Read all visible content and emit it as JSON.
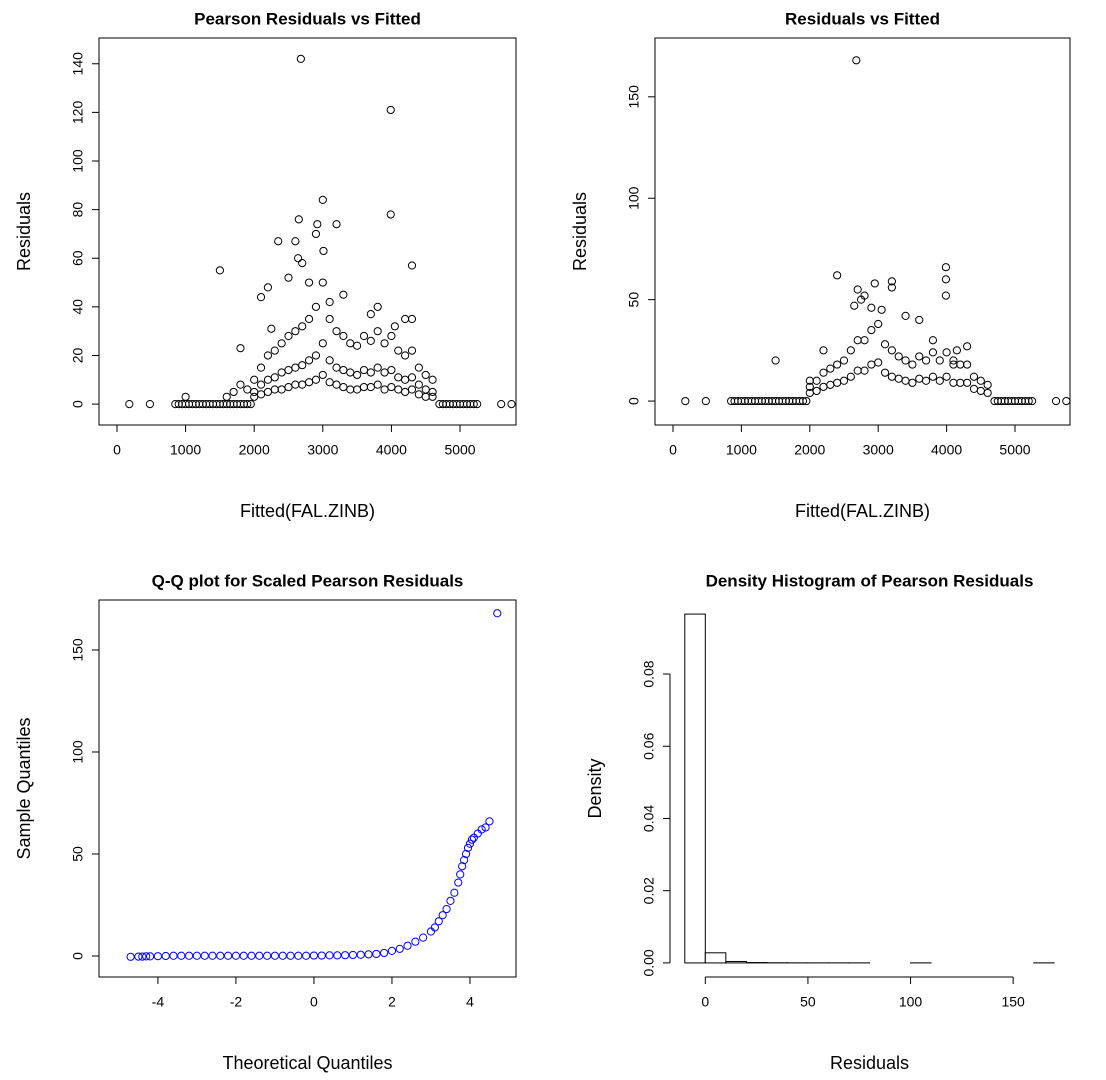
{
  "chart_data": [
    {
      "type": "scatter",
      "title": "Pearson Residuals vs Fitted",
      "xlabel": "Fitted(FAL.ZINB)",
      "ylabel": "Residuals",
      "color": "#000000",
      "x": [
        850,
        900,
        950,
        1000,
        1050,
        1100,
        1150,
        1200,
        1250,
        1300,
        1350,
        1400,
        1450,
        1500,
        1550,
        1600,
        1650,
        1700,
        1750,
        1800,
        1850,
        1900,
        1950,
        4700,
        4750,
        4800,
        4850,
        4900,
        4950,
        5000,
        5050,
        5100,
        5150,
        5200,
        5250,
        180,
        480,
        5600,
        5750,
        2000,
        2100,
        2200,
        2300,
        2400,
        2500,
        2600,
        2700,
        2800,
        2900,
        3000,
        3100,
        3200,
        3300,
        3400,
        3500,
        3600,
        3700,
        3800,
        3900,
        4000,
        4100,
        4200,
        4300,
        4400,
        4500,
        4600,
        2000,
        2100,
        2200,
        2300,
        2400,
        2500,
        2600,
        2700,
        2800,
        2900,
        3000,
        3100,
        3200,
        3300,
        3400,
        3500,
        3600,
        3700,
        3800,
        3900,
        4000,
        4100,
        4200,
        4300,
        4400,
        4500,
        4600,
        2000,
        2100,
        2200,
        2300,
        2400,
        2500,
        2600,
        2700,
        2800,
        2900,
        3000,
        3100,
        3200,
        3300,
        3400,
        3500,
        3600,
        3700,
        3800,
        3900,
        4000,
        4100,
        4200,
        4300,
        4400,
        4500,
        4600,
        1600,
        1700,
        1800,
        1900,
        2680,
        3990,
        3000,
        2920,
        3200,
        2900,
        3010,
        2650,
        2600,
        2350,
        3990,
        4300,
        1500,
        2640,
        2700,
        2200,
        2100,
        3800,
        3700,
        4200,
        4300,
        3300,
        3100,
        2500,
        2800,
        1000,
        1800,
        2250,
        4050
      ],
      "values": [
        0,
        0,
        0,
        0,
        0,
        0,
        0,
        0,
        0,
        0,
        0,
        0,
        0,
        0,
        0,
        0,
        0,
        0,
        0,
        0,
        0,
        0,
        0,
        0,
        0,
        0,
        0,
        0,
        0,
        0,
        0,
        0,
        0,
        0,
        0,
        0,
        0,
        0,
        0,
        10,
        15,
        20,
        22,
        25,
        28,
        30,
        32,
        35,
        40,
        50,
        35,
        30,
        28,
        25,
        24,
        28,
        26,
        30,
        25,
        28,
        22,
        20,
        22,
        15,
        12,
        10,
        5,
        8,
        10,
        11,
        13,
        14,
        15,
        16,
        18,
        20,
        25,
        18,
        15,
        14,
        13,
        12,
        14,
        13,
        15,
        13,
        14,
        11,
        10,
        11,
        8,
        6,
        5,
        3,
        4,
        5,
        6,
        6,
        7,
        8,
        8,
        9,
        10,
        12,
        9,
        8,
        7,
        6,
        6,
        7,
        7,
        8,
        6,
        7,
        6,
        5,
        6,
        4,
        3,
        3,
        3,
        5,
        8,
        6,
        142,
        121,
        84,
        74,
        74,
        70,
        63,
        76,
        67,
        67,
        78,
        57,
        55,
        60,
        58,
        48,
        44,
        40,
        37,
        35,
        35,
        45,
        42,
        52,
        50,
        3,
        23,
        31,
        32
      ],
      "xlim": [
        -262,
        5816
      ],
      "ylim": [
        -8.6,
        150.6
      ],
      "xticks": [
        0,
        1000,
        2000,
        3000,
        4000,
        5000
      ],
      "yticks": [
        0,
        20,
        40,
        60,
        80,
        100,
        120,
        140
      ]
    },
    {
      "type": "scatter",
      "title": "Residuals vs Fitted",
      "xlabel": "Fitted(FAL.ZINB)",
      "ylabel": "Residuals",
      "color": "#000000",
      "x": [
        850,
        900,
        950,
        1000,
        1050,
        1100,
        1150,
        1200,
        1250,
        1300,
        1350,
        1400,
        1450,
        1500,
        1550,
        1600,
        1650,
        1700,
        1750,
        1800,
        1850,
        1900,
        1950,
        4700,
        4750,
        4800,
        4850,
        4900,
        4950,
        5000,
        5050,
        5100,
        5150,
        5200,
        5250,
        2000,
        2100,
        2200,
        2300,
        2400,
        2500,
        2600,
        2700,
        2800,
        2900,
        3000,
        3100,
        3200,
        3300,
        3400,
        3500,
        3600,
        3700,
        3800,
        3900,
        4000,
        4100,
        4200,
        4300,
        4400,
        4500,
        4600,
        2000,
        2100,
        2200,
        2300,
        2400,
        2500,
        2600,
        2700,
        2800,
        2900,
        3000,
        3100,
        3200,
        3300,
        3400,
        3500,
        3600,
        3700,
        3800,
        3900,
        4000,
        4100,
        4200,
        4300,
        4400,
        4500,
        4600,
        2680,
        2400,
        3990,
        3990,
        3990,
        2950,
        3200,
        3200,
        2700,
        2750,
        2800,
        2900,
        3400,
        1500,
        3600,
        2200,
        4300,
        4100,
        2000,
        2650,
        3050,
        3800,
        4150,
        180,
        480,
        5600,
        5750
      ],
      "values": [
        0,
        0,
        0,
        0,
        0,
        0,
        0,
        0,
        0,
        0,
        0,
        0,
        0,
        0,
        0,
        0,
        0,
        0,
        0,
        0,
        0,
        0,
        0,
        0,
        0,
        0,
        0,
        0,
        0,
        0,
        0,
        0,
        0,
        0,
        0,
        7,
        10,
        14,
        16,
        18,
        20,
        25,
        30,
        30,
        35,
        38,
        28,
        25,
        22,
        20,
        18,
        22,
        20,
        24,
        20,
        24,
        18,
        18,
        18,
        12,
        10,
        8,
        4,
        5,
        7,
        8,
        9,
        10,
        12,
        15,
        15,
        18,
        19,
        14,
        12,
        11,
        10,
        9,
        11,
        10,
        12,
        10,
        12,
        9,
        9,
        9,
        6,
        5,
        4,
        168,
        62,
        66,
        60,
        52,
        58,
        59,
        56,
        55,
        50,
        52,
        46,
        42,
        20,
        40,
        25,
        27,
        20,
        10,
        47,
        45,
        30,
        25,
        0,
        0,
        0,
        0
      ],
      "xlim": [
        -263,
        5804
      ],
      "ylim": [
        -11.8,
        179
      ],
      "xticks": [
        0,
        1000,
        2000,
        3000,
        4000,
        5000
      ],
      "yticks": [
        0,
        50,
        100,
        150
      ]
    },
    {
      "type": "scatter",
      "title": "Q-Q plot for Scaled Pearson Residuals",
      "xlabel": "Theoretical Quantiles",
      "ylabel": "Sample Quantiles",
      "color": "#0000ff",
      "x": [
        -4.7,
        -4.5,
        -4.4,
        -4.3,
        -4.2,
        -4.0,
        -3.8,
        -3.6,
        -3.4,
        -3.2,
        -3.0,
        -2.8,
        -2.6,
        -2.4,
        -2.2,
        -2.0,
        -1.8,
        -1.6,
        -1.4,
        -1.2,
        -1.0,
        -0.8,
        -0.6,
        -0.4,
        -0.2,
        0,
        0.2,
        0.4,
        0.6,
        0.8,
        1.0,
        1.2,
        1.4,
        1.6,
        1.8,
        2.0,
        2.2,
        2.4,
        2.6,
        2.8,
        3.0,
        3.1,
        3.2,
        3.3,
        3.4,
        3.5,
        3.6,
        3.7,
        3.75,
        3.8,
        3.85,
        3.9,
        3.95,
        4.0,
        4.05,
        4.1,
        4.2,
        4.3,
        4.4,
        4.5,
        4.7
      ],
      "values": [
        -0.4,
        -0.3,
        -0.3,
        -0.2,
        -0.2,
        -0.1,
        0,
        0.1,
        0.1,
        0.1,
        0.1,
        0.1,
        0.1,
        0.1,
        0.1,
        0.1,
        0.1,
        0.1,
        0.1,
        0.1,
        0.1,
        0.1,
        0.1,
        0.1,
        0.1,
        0.2,
        0.2,
        0.3,
        0.3,
        0.4,
        0.5,
        0.6,
        0.8,
        1.0,
        1.5,
        2.5,
        3.5,
        5,
        7,
        9,
        12,
        14,
        17,
        20,
        23,
        27,
        31,
        36,
        40,
        44,
        47,
        50,
        53,
        55,
        57,
        58,
        60,
        62,
        63,
        66,
        168
      ],
      "xlim": [
        -5.51,
        5.18
      ],
      "ylim": [
        -10.3,
        174.5
      ],
      "xticks": [
        -4,
        -2,
        0,
        2,
        4
      ],
      "yticks": [
        0,
        50,
        100,
        150
      ]
    },
    {
      "type": "histogram",
      "title": "Density Histogram of Pearson Residuals",
      "xlabel": "Residuals",
      "ylabel": "Density",
      "color": "#ffffff",
      "bins": [
        -10,
        0,
        10,
        20,
        30,
        40,
        50,
        60,
        70,
        80,
        90,
        100,
        110,
        120,
        130,
        140,
        150,
        160,
        170
      ],
      "values": [
        0.0966,
        0.0028,
        0.0004,
        0.0001,
        4e-05,
        2e-05,
        1e-05,
        1e-05,
        1e-05,
        0,
        0,
        1e-05,
        0,
        0,
        0,
        0,
        0,
        1e-05
      ],
      "xlim": [
        -17.2,
        177.2
      ],
      "ylim": [
        -0.0039,
        0.1005
      ],
      "xticks": [
        0,
        50,
        100,
        150
      ],
      "yticks": [
        {
          "value": 0,
          "label": "0.00"
        },
        {
          "value": 0.02,
          "label": "0.02"
        },
        {
          "value": 0.04,
          "label": "0.04"
        },
        {
          "value": 0.06,
          "label": "0.06"
        },
        {
          "value": 0.08,
          "label": "0.08"
        }
      ]
    }
  ]
}
